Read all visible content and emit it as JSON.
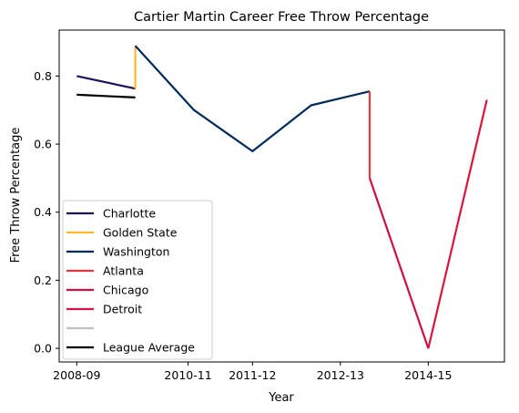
{
  "chart_data": {
    "type": "line",
    "title": "Cartier Martin Career Free Throw Percentage",
    "xlabel": "Year",
    "ylabel": "Free Throw Percentage",
    "x_ticks": [
      "2008-09",
      "2010-11",
      "2011-12",
      "2012-13",
      "2014-15"
    ],
    "y_ticks": [
      "0.0",
      "0.2",
      "0.4",
      "0.6",
      "0.8"
    ],
    "xlim": [
      -0.3,
      7.3
    ],
    "ylim": [
      -0.04,
      0.935
    ],
    "legend_position": "lower-left",
    "grid": false,
    "series": [
      {
        "name": "Charlotte",
        "color": "#1d1160",
        "points": [
          [
            0,
            0.8
          ],
          [
            1,
            0.763
          ]
        ]
      },
      {
        "name": "Golden State",
        "color": "#fdb927",
        "points": [
          [
            1,
            0.763
          ],
          [
            1,
            0.889
          ]
        ]
      },
      {
        "name": "Washington",
        "color": "#002b5c",
        "points": [
          [
            1,
            0.889
          ],
          [
            2,
            0.7
          ],
          [
            3,
            0.579
          ],
          [
            4,
            0.714
          ],
          [
            5,
            0.755
          ]
        ]
      },
      {
        "name": "Atlanta",
        "color": "#e03a3e",
        "points": [
          [
            5,
            0.755
          ],
          [
            5,
            0.5
          ]
        ]
      },
      {
        "name": "Chicago",
        "color": "#ce1141",
        "points": [
          [
            5,
            0.5
          ],
          [
            6,
            0.0
          ]
        ]
      },
      {
        "name": "Detroit",
        "color": "#dc143c",
        "points": [
          [
            6,
            0.0
          ],
          [
            7,
            0.73
          ]
        ]
      },
      {
        "name": "",
        "color": "#c0c0c0",
        "points": []
      },
      {
        "name": "League Average",
        "color": "#000000",
        "points": [
          [
            0,
            0.745
          ],
          [
            1,
            0.737
          ]
        ]
      }
    ]
  }
}
